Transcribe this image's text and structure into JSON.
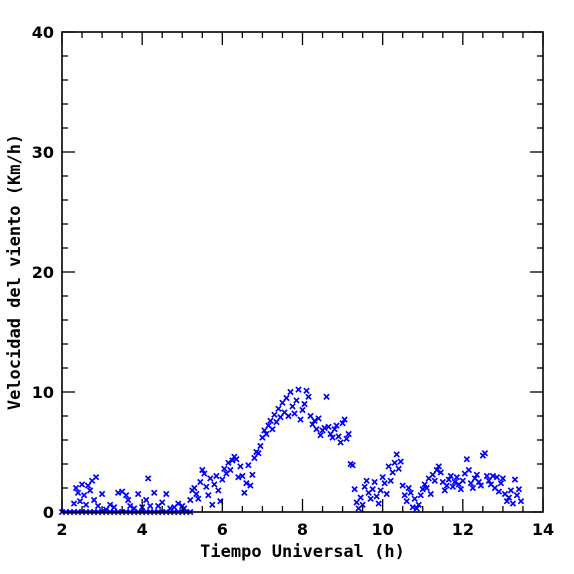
{
  "chart_data": {
    "type": "scatter",
    "title": "",
    "xlabel": "Tiempo Universal (h)",
    "ylabel": "Velocidad del viento (Km/h)",
    "xlim": [
      2,
      14
    ],
    "ylim": [
      0,
      40
    ],
    "x_ticks": [
      2,
      4,
      6,
      8,
      10,
      12,
      14
    ],
    "y_ticks": [
      0,
      10,
      20,
      30,
      40
    ],
    "x_tick_labels": [
      "2",
      "4",
      "6",
      "8",
      "10",
      "12",
      "14"
    ],
    "y_tick_labels": [
      "0",
      "10",
      "20",
      "30",
      "40"
    ],
    "grid": false,
    "marker": "x",
    "color": "#0000ff",
    "series": [
      {
        "points": [
          [
            2.0,
            0
          ],
          [
            2.1,
            0
          ],
          [
            2.2,
            0
          ],
          [
            2.3,
            0
          ],
          [
            2.4,
            0
          ],
          [
            2.5,
            0
          ],
          [
            2.6,
            0
          ],
          [
            2.7,
            0
          ],
          [
            2.8,
            0
          ],
          [
            2.9,
            0
          ],
          [
            3.0,
            0
          ],
          [
            3.1,
            0
          ],
          [
            3.2,
            0
          ],
          [
            3.3,
            0
          ],
          [
            3.4,
            0
          ],
          [
            3.5,
            0
          ],
          [
            3.6,
            0
          ],
          [
            3.7,
            0
          ],
          [
            3.8,
            0
          ],
          [
            3.9,
            0
          ],
          [
            4.0,
            0
          ],
          [
            4.1,
            0
          ],
          [
            4.2,
            0
          ],
          [
            4.3,
            0
          ],
          [
            4.4,
            0
          ],
          [
            4.5,
            0
          ],
          [
            4.6,
            0
          ],
          [
            4.7,
            0
          ],
          [
            4.8,
            0
          ],
          [
            4.9,
            0
          ],
          [
            5.0,
            0
          ],
          [
            5.1,
            0
          ],
          [
            5.2,
            0
          ],
          [
            2.3,
            0.7
          ],
          [
            2.35,
            2.0
          ],
          [
            2.4,
            1.6
          ],
          [
            2.45,
            0.9
          ],
          [
            2.5,
            2.3
          ],
          [
            2.55,
            1.4
          ],
          [
            2.6,
            0.6
          ],
          [
            2.65,
            2.2
          ],
          [
            2.7,
            1.8
          ],
          [
            2.75,
            2.6
          ],
          [
            2.8,
            1.0
          ],
          [
            2.85,
            2.9
          ],
          [
            2.9,
            0.5
          ],
          [
            3.0,
            1.5
          ],
          [
            3.1,
            0.2
          ],
          [
            3.2,
            0.6
          ],
          [
            3.3,
            0.4
          ],
          [
            3.4,
            1.6
          ],
          [
            3.5,
            1.7
          ],
          [
            3.6,
            1.4
          ],
          [
            3.65,
            1.0
          ],
          [
            3.7,
            0.5
          ],
          [
            3.8,
            0.3
          ],
          [
            3.9,
            1.5
          ],
          [
            4.0,
            0.4
          ],
          [
            4.1,
            1.0
          ],
          [
            4.15,
            2.8
          ],
          [
            4.2,
            0.5
          ],
          [
            4.3,
            1.6
          ],
          [
            4.4,
            0.5
          ],
          [
            4.5,
            0.8
          ],
          [
            4.6,
            1.5
          ],
          [
            4.7,
            0.3
          ],
          [
            4.8,
            0.4
          ],
          [
            4.9,
            0.7
          ],
          [
            5.0,
            0.5
          ],
          [
            5.05,
            0.3
          ],
          [
            5.2,
            1.0
          ],
          [
            5.25,
            1.8
          ],
          [
            5.3,
            2.0
          ],
          [
            5.35,
            1.5
          ],
          [
            5.4,
            1.1
          ],
          [
            5.45,
            2.5
          ],
          [
            5.5,
            3.5
          ],
          [
            5.55,
            3.2
          ],
          [
            5.6,
            2.1
          ],
          [
            5.65,
            1.4
          ],
          [
            5.7,
            2.8
          ],
          [
            5.75,
            0.6
          ],
          [
            5.8,
            2.3
          ],
          [
            5.85,
            3.0
          ],
          [
            5.9,
            1.8
          ],
          [
            5.95,
            0.9
          ],
          [
            6.0,
            2.7
          ],
          [
            6.05,
            3.6
          ],
          [
            6.1,
            3.2
          ],
          [
            6.15,
            4.1
          ],
          [
            6.2,
            3.5
          ],
          [
            6.25,
            4.3
          ],
          [
            6.3,
            4.6
          ],
          [
            6.35,
            4.4
          ],
          [
            6.4,
            2.9
          ],
          [
            6.45,
            3.8
          ],
          [
            6.5,
            3.0
          ],
          [
            6.55,
            1.6
          ],
          [
            6.6,
            2.4
          ],
          [
            6.65,
            3.9
          ],
          [
            6.7,
            2.2
          ],
          [
            6.75,
            3.1
          ],
          [
            6.8,
            4.5
          ],
          [
            6.85,
            5.0
          ],
          [
            6.9,
            4.9
          ],
          [
            6.95,
            5.5
          ],
          [
            7.0,
            6.2
          ],
          [
            7.05,
            6.8
          ],
          [
            7.1,
            6.5
          ],
          [
            7.15,
            7.2
          ],
          [
            7.2,
            7.6
          ],
          [
            7.25,
            6.9
          ],
          [
            7.3,
            8.1
          ],
          [
            7.35,
            7.5
          ],
          [
            7.4,
            8.6
          ],
          [
            7.45,
            7.9
          ],
          [
            7.5,
            9.1
          ],
          [
            7.55,
            8.3
          ],
          [
            7.6,
            9.5
          ],
          [
            7.65,
            8.0
          ],
          [
            7.7,
            10.0
          ],
          [
            7.75,
            8.8
          ],
          [
            7.8,
            8.2
          ],
          [
            7.85,
            9.3
          ],
          [
            7.9,
            10.2
          ],
          [
            7.95,
            7.7
          ],
          [
            8.0,
            8.5
          ],
          [
            8.05,
            9.0
          ],
          [
            8.1,
            10.1
          ],
          [
            8.15,
            9.6
          ],
          [
            8.2,
            8.0
          ],
          [
            8.25,
            7.3
          ],
          [
            8.3,
            7.6
          ],
          [
            8.35,
            6.9
          ],
          [
            8.4,
            7.8
          ],
          [
            8.45,
            6.4
          ],
          [
            8.5,
            6.8
          ],
          [
            8.55,
            7.0
          ],
          [
            8.6,
            9.6
          ],
          [
            8.65,
            7.1
          ],
          [
            8.7,
            6.5
          ],
          [
            8.75,
            6.2
          ],
          [
            8.8,
            6.9
          ],
          [
            8.85,
            7.2
          ],
          [
            8.9,
            6.3
          ],
          [
            8.95,
            5.8
          ],
          [
            9.0,
            7.4
          ],
          [
            9.05,
            7.7
          ],
          [
            9.1,
            6.1
          ],
          [
            9.15,
            6.5
          ],
          [
            9.2,
            4.0
          ],
          [
            9.25,
            3.9
          ],
          [
            9.3,
            1.9
          ],
          [
            9.35,
            0.8
          ],
          [
            9.4,
            0.3
          ],
          [
            9.45,
            1.2
          ],
          [
            9.5,
            0.6
          ],
          [
            9.55,
            2.1
          ],
          [
            9.6,
            2.6
          ],
          [
            9.65,
            1.6
          ],
          [
            9.7,
            1.1
          ],
          [
            9.75,
            1.9
          ],
          [
            9.8,
            2.5
          ],
          [
            9.85,
            1.3
          ],
          [
            9.9,
            0.7
          ],
          [
            9.95,
            1.8
          ],
          [
            10.0,
            2.9
          ],
          [
            10.05,
            2.4
          ],
          [
            10.1,
            1.5
          ],
          [
            10.15,
            3.8
          ],
          [
            10.2,
            2.6
          ],
          [
            10.25,
            3.3
          ],
          [
            10.3,
            4.1
          ],
          [
            10.35,
            4.8
          ],
          [
            10.4,
            3.6
          ],
          [
            10.45,
            4.2
          ],
          [
            10.5,
            2.2
          ],
          [
            10.55,
            1.4
          ],
          [
            10.6,
            0.9
          ],
          [
            10.65,
            2.0
          ],
          [
            10.7,
            1.6
          ],
          [
            10.75,
            0.4
          ],
          [
            10.8,
            1.1
          ],
          [
            10.85,
            0.3
          ],
          [
            10.9,
            0.6
          ],
          [
            10.95,
            1.4
          ],
          [
            11.0,
            1.9
          ],
          [
            11.05,
            2.3
          ],
          [
            11.1,
            2.0
          ],
          [
            11.15,
            2.8
          ],
          [
            11.2,
            1.5
          ],
          [
            11.25,
            3.1
          ],
          [
            11.3,
            2.6
          ],
          [
            11.35,
            3.5
          ],
          [
            11.4,
            3.8
          ],
          [
            11.45,
            3.3
          ],
          [
            11.5,
            2.5
          ],
          [
            11.55,
            1.8
          ],
          [
            11.6,
            2.2
          ],
          [
            11.65,
            2.7
          ],
          [
            11.7,
            3.0
          ],
          [
            11.75,
            2.1
          ],
          [
            11.8,
            2.5
          ],
          [
            11.85,
            2.9
          ],
          [
            11.9,
            2.3
          ],
          [
            11.95,
            1.9
          ],
          [
            12.0,
            2.6
          ],
          [
            12.05,
            3.2
          ],
          [
            12.1,
            4.4
          ],
          [
            12.15,
            3.5
          ],
          [
            12.2,
            2.4
          ],
          [
            12.25,
            2.0
          ],
          [
            12.3,
            2.8
          ],
          [
            12.35,
            3.1
          ],
          [
            12.4,
            2.5
          ],
          [
            12.45,
            2.2
          ],
          [
            12.5,
            4.7
          ],
          [
            12.55,
            4.9
          ],
          [
            12.6,
            3.0
          ],
          [
            12.65,
            2.6
          ],
          [
            12.7,
            2.3
          ],
          [
            12.75,
            3.0
          ],
          [
            12.8,
            2.0
          ],
          [
            12.85,
            2.9
          ],
          [
            12.9,
            1.7
          ],
          [
            12.95,
            2.4
          ],
          [
            13.0,
            2.8
          ],
          [
            13.05,
            1.5
          ],
          [
            13.1,
            0.9
          ],
          [
            13.15,
            1.2
          ],
          [
            13.2,
            1.8
          ],
          [
            13.25,
            0.7
          ],
          [
            13.3,
            2.7
          ],
          [
            13.35,
            1.4
          ],
          [
            13.4,
            1.9
          ],
          [
            13.45,
            0.9
          ]
        ]
      }
    ]
  }
}
